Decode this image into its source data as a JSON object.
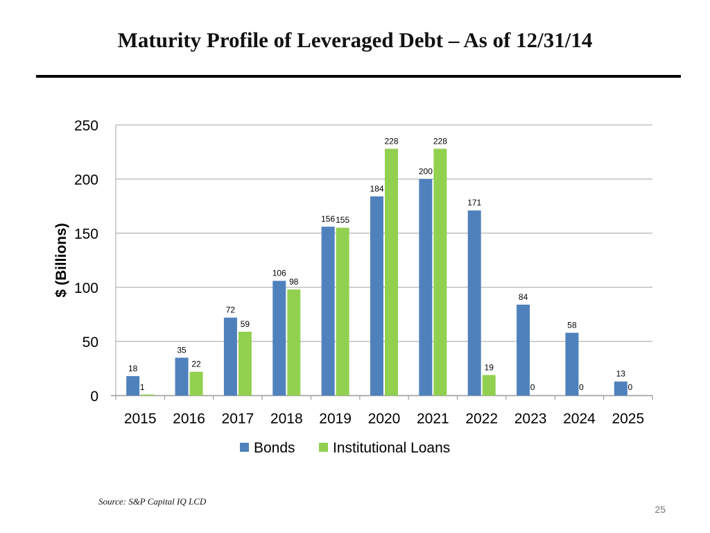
{
  "slide": {
    "title": "Maturity Profile of Leveraged Debt – As of 12/31/14",
    "source": "Source: S&P Capital IQ LCD",
    "page_number": "25"
  },
  "chart_data": {
    "type": "bar",
    "title": "",
    "xlabel": "",
    "ylabel": "$ (Billions)",
    "ylim": [
      0,
      250
    ],
    "yticks": [
      0,
      50,
      100,
      150,
      200,
      250
    ],
    "grid": true,
    "legend_position": "bottom",
    "categories": [
      "2015",
      "2016",
      "2017",
      "2018",
      "2019",
      "2020",
      "2021",
      "2022",
      "2023",
      "2024",
      "2025"
    ],
    "series": [
      {
        "name": "Bonds",
        "color": "#4f81bd",
        "values": [
          18,
          35,
          72,
          106,
          156,
          184,
          200,
          171,
          84,
          58,
          13
        ]
      },
      {
        "name": "Institutional Loans",
        "color": "#92d050",
        "values": [
          1,
          22,
          59,
          98,
          155,
          228,
          228,
          19,
          0,
          0,
          0
        ]
      }
    ]
  }
}
